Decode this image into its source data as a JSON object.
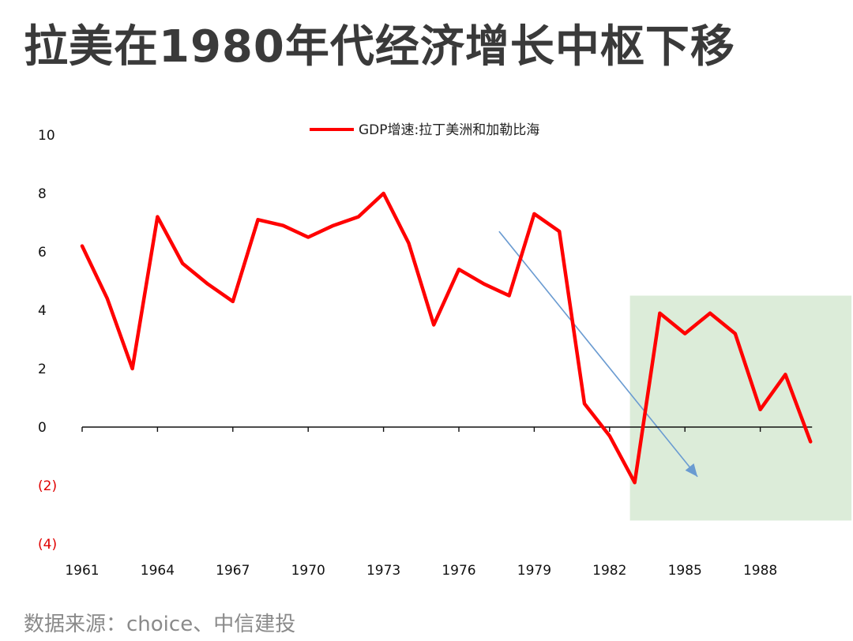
{
  "title": "拉美在1980年代经济增长中枢下移",
  "source": "数据来源：choice、中信建投",
  "colors": {
    "series": "#ff0000",
    "highlight": "#dcecd9",
    "arrow": "#6a9bd1",
    "axis": "#111111",
    "negative_tick": "#e00000"
  },
  "chart_data": {
    "type": "line",
    "legend": {
      "position": "top-center",
      "entries": [
        "GDP增速:拉丁美洲和加勒比海"
      ]
    },
    "series": [
      {
        "name": "GDP增速:拉丁美洲和加勒比海",
        "x": [
          1961,
          1962,
          1963,
          1964,
          1965,
          1966,
          1967,
          1968,
          1969,
          1970,
          1971,
          1972,
          1973,
          1974,
          1975,
          1976,
          1977,
          1978,
          1979,
          1980,
          1981,
          1982,
          1983,
          1984,
          1985,
          1986,
          1987,
          1988,
          1989,
          1990
        ],
        "values": [
          6.2,
          4.4,
          2.0,
          7.2,
          5.6,
          4.9,
          4.3,
          7.1,
          6.9,
          6.5,
          6.9,
          7.2,
          8.0,
          6.3,
          3.5,
          5.4,
          4.9,
          4.5,
          7.3,
          6.7,
          0.8,
          -0.3,
          -1.9,
          3.9,
          3.2,
          3.9,
          3.2,
          0.6,
          1.8,
          -0.5
        ]
      }
    ],
    "ylim": [
      -4,
      10
    ],
    "y_ticks": [
      10,
      8,
      6,
      4,
      2,
      0,
      -2,
      -4
    ],
    "y_tick_labels": [
      "10",
      "8",
      "6",
      "4",
      "2",
      "0",
      "(2)",
      "(4)"
    ],
    "x_ticks": [
      1961,
      1964,
      1967,
      1970,
      1973,
      1976,
      1979,
      1982,
      1985,
      1988
    ],
    "x_tick_labels": [
      "1961",
      "1964",
      "1967",
      "1970",
      "1973",
      "1976",
      "1979",
      "1982",
      "1985",
      "1988"
    ],
    "grid": false,
    "annotations": [
      {
        "type": "shaded-region",
        "x_range": [
          1983,
          1990.5
        ],
        "y_range": [
          -3.2,
          4.5
        ]
      },
      {
        "type": "trend-arrow",
        "from": [
          1977.6,
          6.7
        ],
        "to": [
          1985.5,
          -1.7
        ]
      }
    ]
  }
}
